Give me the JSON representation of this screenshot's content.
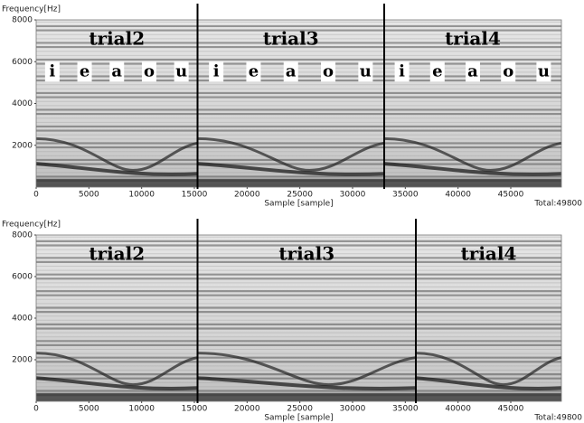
{
  "chart_data": [
    {
      "type": "spectrogram",
      "y_label": "Frequency[Hz]",
      "x_label": "Sample [sample]",
      "total_label": "Total:49800",
      "xlim": [
        0,
        49800
      ],
      "ylim": [
        0,
        8000
      ],
      "xticks": [
        0,
        5000,
        10000,
        15000,
        20000,
        25000,
        30000,
        35000,
        40000,
        45000
      ],
      "yticks": [
        2000,
        4000,
        6000,
        8000
      ],
      "dividers": [
        15300,
        33000
      ],
      "segments": [
        {
          "label": "trial2",
          "vowels": [
            "i",
            "e",
            "a",
            "o",
            "u"
          ]
        },
        {
          "label": "trial3",
          "vowels": [
            "i",
            "e",
            "a",
            "o",
            "u"
          ]
        },
        {
          "label": "trial4",
          "vowels": [
            "i",
            "e",
            "a",
            "o",
            "u"
          ]
        }
      ]
    },
    {
      "type": "spectrogram",
      "y_label": "Frequency[Hz]",
      "x_label": "Sample [sample]",
      "total_label": "Total:49800",
      "xlim": [
        0,
        49800
      ],
      "ylim": [
        0,
        8000
      ],
      "xticks": [
        0,
        5000,
        10000,
        15000,
        20000,
        25000,
        30000,
        35000,
        40000,
        45000
      ],
      "yticks": [
        2000,
        4000,
        6000,
        8000
      ],
      "dividers": [
        15300,
        36000
      ],
      "segments": [
        {
          "label": "trial2"
        },
        {
          "label": "trial3"
        },
        {
          "label": "trial4"
        }
      ]
    }
  ]
}
